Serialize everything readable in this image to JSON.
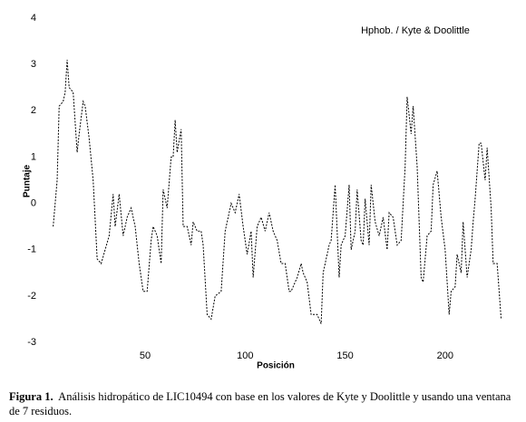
{
  "chart_data": {
    "type": "line",
    "annotation": "Hphob. / Kyte & Doolittle",
    "xlabel": "Posición",
    "ylabel": "Puntaje",
    "color": "#000000",
    "dashed": true,
    "x": [
      4,
      6,
      7,
      9,
      10,
      11,
      12,
      14,
      16,
      17,
      19,
      20,
      22,
      24,
      26,
      28,
      30,
      32,
      34,
      35,
      37,
      39,
      41,
      43,
      45,
      47,
      49,
      51,
      53,
      54,
      56,
      58,
      59,
      61,
      63,
      64,
      65,
      66,
      68,
      69,
      71,
      73,
      74,
      76,
      78,
      79,
      81,
      83,
      85,
      88,
      90,
      93,
      95,
      97,
      99,
      101,
      103,
      104,
      106,
      108,
      110,
      112,
      114,
      116,
      118,
      120,
      122,
      123,
      126,
      128,
      129,
      131,
      133,
      136,
      138,
      139,
      142,
      143,
      145,
      147,
      148,
      150,
      152,
      153,
      155,
      156,
      158,
      159,
      160,
      162,
      163,
      165,
      167,
      169,
      171,
      172,
      174,
      176,
      178,
      180,
      181,
      183,
      184,
      186,
      188,
      189,
      191,
      193,
      194,
      196,
      198,
      200,
      202,
      203,
      205,
      206,
      208,
      209,
      211,
      213,
      214,
      215,
      217,
      218,
      220,
      221,
      223,
      224,
      226,
      228
    ],
    "values": [
      -0.5,
      0.5,
      2.1,
      2.2,
      2.4,
      3.1,
      2.5,
      2.4,
      1.1,
      1.5,
      2.2,
      2.1,
      1.4,
      0.5,
      -1.2,
      -1.3,
      -1.0,
      -0.7,
      0.2,
      -0.5,
      0.2,
      -0.7,
      -0.3,
      -0.1,
      -0.5,
      -1.3,
      -1.9,
      -1.9,
      -0.8,
      -0.5,
      -0.7,
      -1.3,
      0.3,
      -0.1,
      1.0,
      1.0,
      1.8,
      1.1,
      1.6,
      -0.5,
      -0.5,
      -0.9,
      -0.4,
      -0.6,
      -0.6,
      -0.9,
      -2.4,
      -2.5,
      -2.0,
      -1.9,
      -0.6,
      0,
      -0.2,
      0.2,
      -0.5,
      -1.1,
      -0.6,
      -1.6,
      -0.5,
      -0.3,
      -0.6,
      -0.2,
      -0.6,
      -0.8,
      -1.3,
      -1.3,
      -1.9,
      -1.9,
      -1.6,
      -1.3,
      -1.5,
      -1.7,
      -2.4,
      -2.4,
      -2.6,
      -1.5,
      -0.9,
      -0.8,
      0.4,
      -1.6,
      -0.9,
      -0.7,
      0.4,
      -1.0,
      -0.6,
      0.3,
      -0.8,
      -0.9,
      0.1,
      -0.9,
      0.4,
      -0.4,
      -0.7,
      -0.3,
      -1.0,
      -0.2,
      -0.3,
      -0.9,
      -0.8,
      0.8,
      2.3,
      1.5,
      2.1,
      0.8,
      -1.6,
      -1.7,
      -0.7,
      -0.6,
      0.4,
      0.7,
      -0.3,
      -1.0,
      -2.4,
      -1.9,
      -1.8,
      -1.1,
      -1.5,
      -0.4,
      -1.6,
      -1.0,
      -0.4,
      0.1,
      1.3,
      1.3,
      0.5,
      1.2,
      -0.1,
      -1.3,
      -1.3,
      -2.5
    ],
    "xlim": [
      1,
      230
    ],
    "xticks": [
      50,
      100,
      150,
      200
    ],
    "ylim": [
      -3,
      4
    ],
    "yticks": [
      -3,
      -2,
      -1,
      0,
      1,
      2,
      3,
      4
    ]
  },
  "caption": {
    "label": "Figura 1.",
    "text": "Análisis hidropático de LIC10494 con base en los valores de Kyte y Doolittle y usando una ventana de 7 residuos."
  }
}
